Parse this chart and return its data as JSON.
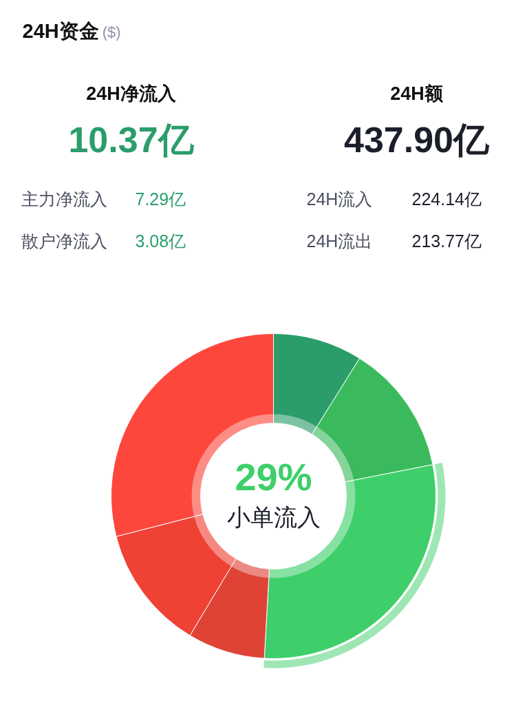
{
  "chart_data": [
    {
      "type": "other",
      "title": "24H资金",
      "subtitle": "($)",
      "annotations": [
        "24H净流入",
        "10.37亿",
        "24H额",
        "437.90亿",
        "主力净流入",
        "7.29亿",
        "散户净流入",
        "3.08亿",
        "24H流入",
        "224.14亿",
        "24H流出",
        "213.77亿"
      ]
    },
    {
      "type": "donut",
      "categories": [
        null,
        null,
        "小单流入",
        null,
        null,
        null
      ],
      "values": [
        8.9,
        13.0,
        29,
        7.7,
        12.4,
        29.0
      ],
      "colors": [
        "#2a9d6b",
        "#3aba5d",
        "#3ecf6a",
        "#df4336",
        "#ef4134",
        "#fd473d"
      ],
      "value_labels": [
        null,
        null,
        "29%",
        null,
        null,
        null
      ]
    }
  ]
}
